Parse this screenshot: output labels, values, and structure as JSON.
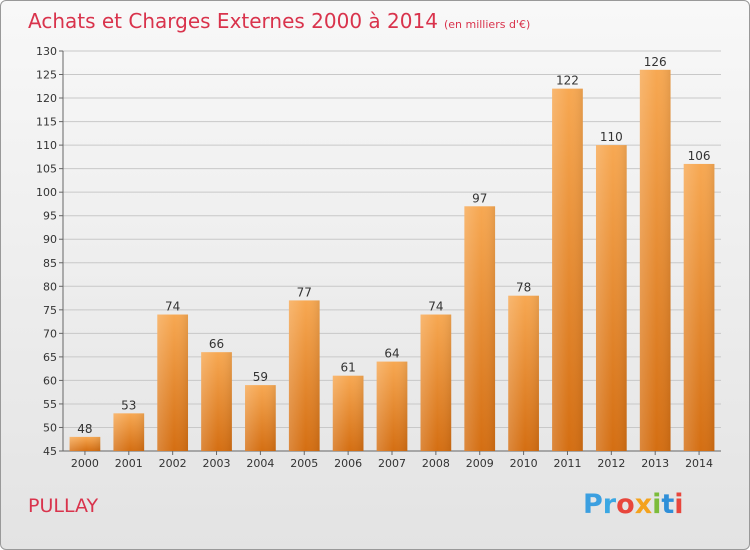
{
  "header": {
    "title": "Achats et Charges Externes 2000 à 2014",
    "unit": "(en milliers d'€)"
  },
  "footer": {
    "city": "PULLAY",
    "logo_letters": [
      "P",
      "r",
      "o",
      "x",
      "i",
      "t",
      "i"
    ]
  },
  "colors": {
    "title": "#d9334c",
    "bar_top": "#f7a852",
    "bar_bottom": "#d46e12",
    "grid": "#c8c8c8"
  },
  "chart_data": {
    "type": "bar",
    "title": "Achats et Charges Externes 2000 à 2014",
    "categories": [
      "2000",
      "2001",
      "2002",
      "2003",
      "2004",
      "2005",
      "2006",
      "2007",
      "2008",
      "2009",
      "2010",
      "2011",
      "2012",
      "2013",
      "2014"
    ],
    "values": [
      48,
      53,
      74,
      66,
      59,
      77,
      61,
      64,
      74,
      97,
      78,
      122,
      110,
      126,
      106
    ],
    "ylim": [
      45,
      130
    ],
    "yticks": [
      45,
      50,
      55,
      60,
      65,
      70,
      75,
      80,
      85,
      90,
      95,
      100,
      105,
      110,
      115,
      120,
      125,
      130
    ],
    "grid": true,
    "xlabel": "",
    "ylabel": ""
  }
}
